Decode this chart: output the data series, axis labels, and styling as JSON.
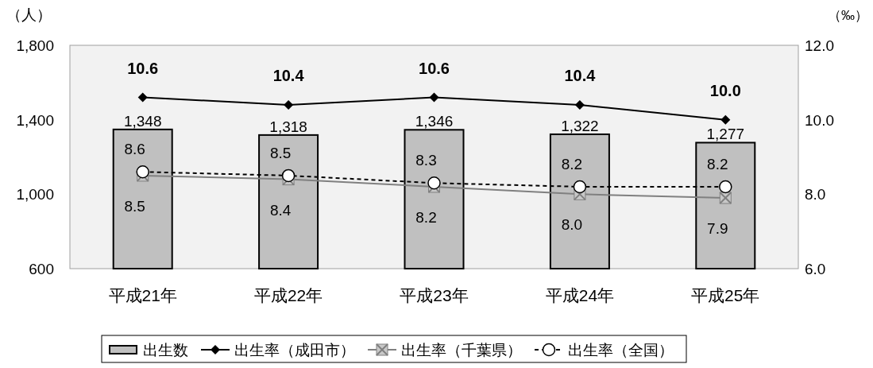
{
  "chart_data": {
    "type": "bar",
    "ylabel": "（人）",
    "y2label": "（‰）",
    "categories": [
      "平成21年",
      "平成22年",
      "平成23年",
      "平成24年",
      "平成25年"
    ],
    "ylim": [
      600,
      1800
    ],
    "yticks": [
      {
        "value": 600,
        "label": "600"
      },
      {
        "value": 1000,
        "label": "1,000"
      },
      {
        "value": 1400,
        "label": "1,400"
      },
      {
        "value": 1800,
        "label": "1,800"
      }
    ],
    "y2lim": [
      6,
      12
    ],
    "y2ticks": [
      {
        "value": 6,
        "label": "6.0"
      },
      {
        "value": 8,
        "label": "8.0"
      },
      {
        "value": 10,
        "label": "10.0"
      },
      {
        "value": 12,
        "label": "12.0"
      }
    ],
    "legend": "bottom",
    "series": [
      {
        "name": "出生数",
        "color": "#c0c0c0",
        "values": [
          1348,
          1318,
          1346,
          1322,
          1277
        ],
        "value_labels": [
          "1,348",
          "1,318",
          "1,346",
          "1,322",
          "1,277"
        ]
      },
      {
        "name": "出生率（成田市）",
        "type": "line",
        "axis": "y2",
        "color": "#000000",
        "marker": "diamond",
        "line_style": "solid",
        "values": [
          10.6,
          10.4,
          10.6,
          10.4,
          10.0
        ],
        "value_labels": [
          "10.6",
          "10.4",
          "10.6",
          "10.4",
          "10.0"
        ]
      },
      {
        "name": "出生率（千葉県）",
        "type": "line",
        "axis": "y2",
        "color": "#808080",
        "marker": "square",
        "line_style": "solid",
        "values": [
          8.5,
          8.4,
          8.2,
          8.0,
          7.9
        ],
        "value_labels": [
          "8.5",
          "8.4",
          "8.2",
          "8.0",
          "7.9"
        ]
      },
      {
        "name": "出生率（全国）",
        "type": "line",
        "axis": "y2",
        "color": "#000000",
        "marker": "circle",
        "line_style": "dashed",
        "values": [
          8.6,
          8.5,
          8.3,
          8.2,
          8.2
        ],
        "value_labels": [
          "8.6",
          "8.5",
          "8.3",
          "8.2",
          "8.2"
        ]
      }
    ]
  }
}
